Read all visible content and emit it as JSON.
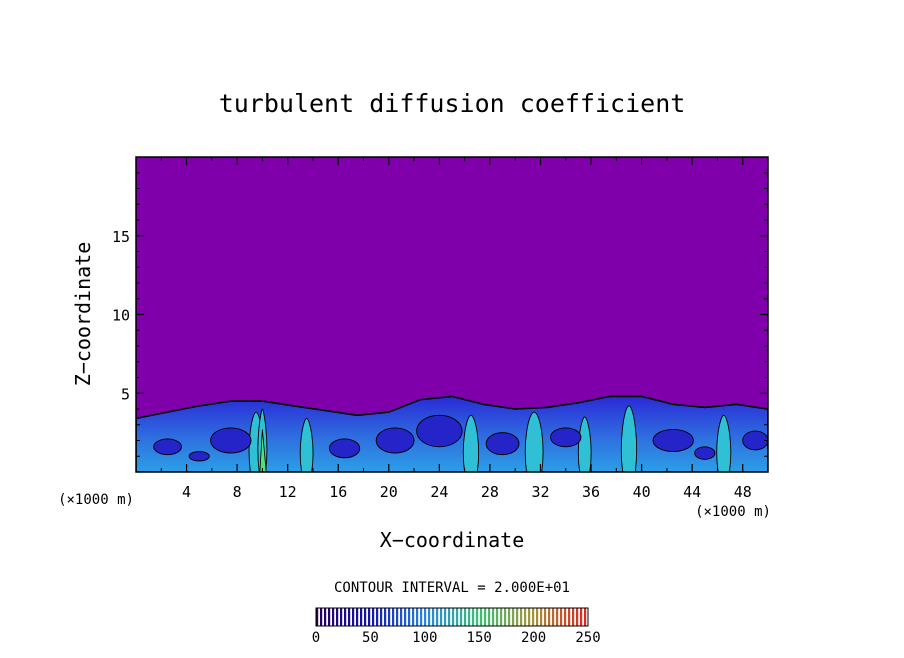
{
  "chart_data": {
    "type": "heatmap",
    "title": "turbulent diffusion coefficient",
    "xlabel": "X−coordinate",
    "ylabel": "Z−coordinate",
    "x_unit": "(×1000 m)",
    "z_unit": "(×1000 m)",
    "xlim": [
      0,
      50
    ],
    "ylim": [
      0,
      20
    ],
    "x_ticks": [
      4,
      8,
      12,
      16,
      20,
      24,
      28,
      32,
      36,
      40,
      44,
      48
    ],
    "y_ticks": [
      5,
      10,
      15
    ],
    "background_value": 0,
    "turbulent_layer_top": [
      3.4,
      3.8,
      4.2,
      4.5,
      4.5,
      4.2,
      3.9,
      3.6,
      3.8,
      4.6,
      4.8,
      4.3,
      4.0,
      4.1,
      4.4,
      4.8,
      4.8,
      4.3,
      4.1,
      4.3,
      4.0
    ],
    "turbulent_layer_x": [
      0,
      2.5,
      5,
      7.5,
      10,
      12.5,
      15,
      17.5,
      20,
      22.5,
      25,
      27.5,
      30,
      32.5,
      35,
      37.5,
      40,
      42.5,
      45,
      47.5,
      50
    ],
    "contour_interval_label": "CONTOUR INTERVAL = 2.000E+01",
    "colorbar": {
      "min": 0,
      "max": 250,
      "tick_labels": [
        "0",
        "50",
        "100",
        "150",
        "200",
        "250"
      ],
      "tick_values": [
        0,
        50,
        100,
        150,
        200,
        250
      ]
    },
    "colors": {
      "background": "#7f00aa",
      "low": "#2a2ad6",
      "mid": "#2f7fe6",
      "high": "#30c0d6",
      "peak": "#4fe07a"
    }
  }
}
